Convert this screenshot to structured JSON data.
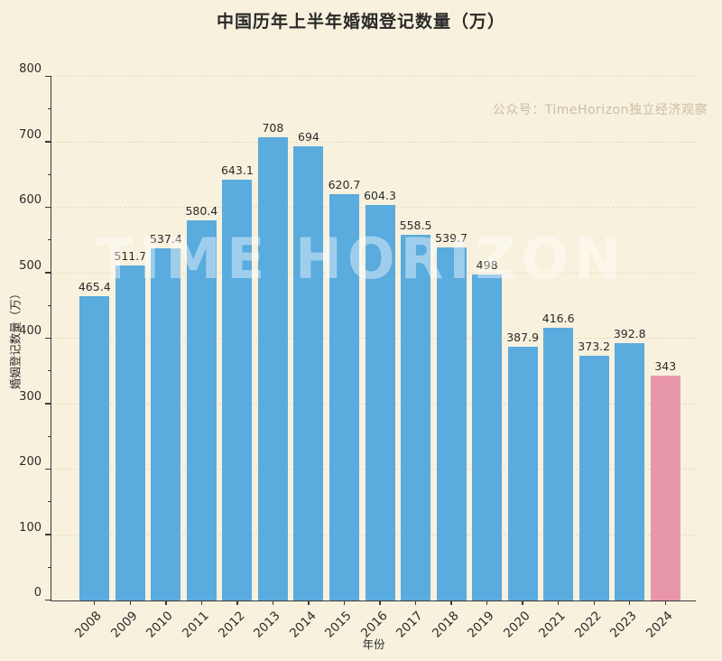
{
  "chart_data": {
    "type": "bar",
    "title": "中国历年上半年婚姻登记数量（万）",
    "xlabel": "年份",
    "ylabel": "婚姻登记数量（万）",
    "categories": [
      "2008",
      "2009",
      "2010",
      "2011",
      "2012",
      "2013",
      "2014",
      "2015",
      "2016",
      "2017",
      "2018",
      "2019",
      "2020",
      "2021",
      "2022",
      "2023",
      "2024"
    ],
    "values": [
      465.4,
      511.7,
      537.4,
      580.4,
      643.1,
      708,
      694,
      620.7,
      604.3,
      558.5,
      539.7,
      498,
      387.9,
      416.6,
      373.2,
      392.8,
      343
    ],
    "ylim": [
      0,
      800
    ],
    "yticks": [
      0,
      100,
      200,
      300,
      400,
      500,
      600,
      700,
      800
    ],
    "grid": "horizontal-dashed",
    "legend": "none",
    "bar_color_default": "#5aabde",
    "bar_color_highlight": "#e896aa",
    "highlight_category": "2024",
    "background_color": "#f8f1dd",
    "watermark_corner": "公众号：TimeHorizon独立经济观察",
    "watermark_center": "TIME HORIZON"
  }
}
